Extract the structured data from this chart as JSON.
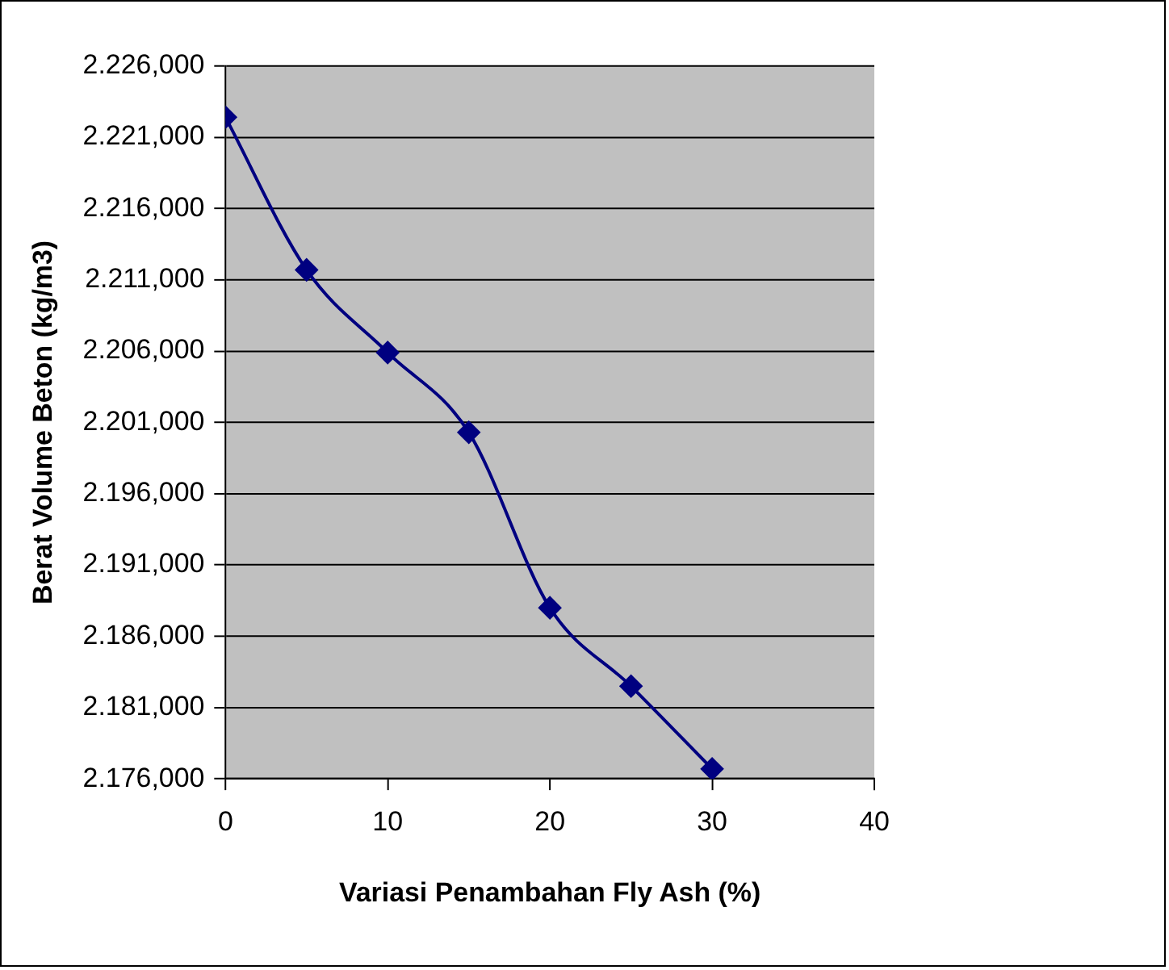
{
  "chart_data": {
    "type": "line",
    "xlabel": "Variasi Penambahan Fly Ash (%)",
    "ylabel": "Berat Volume Beton (kg/m3)",
    "x": [
      0,
      5,
      10,
      15,
      20,
      25,
      30
    ],
    "series": [
      {
        "color": "#000080",
        "values": [
          2222.4,
          2211.7,
          2205.9,
          2200.3,
          2188.0,
          2182.5,
          2176.7
        ]
      }
    ],
    "xlim": [
      0,
      40
    ],
    "xticks": [
      0,
      10,
      20,
      30,
      40
    ],
    "ylim": [
      2176,
      2226
    ],
    "yticks": [
      {
        "value": 2176,
        "label": "2.176,000"
      },
      {
        "value": 2181,
        "label": "2.181,000"
      },
      {
        "value": 2186,
        "label": "2.186,000"
      },
      {
        "value": 2191,
        "label": "2.191,000"
      },
      {
        "value": 2196,
        "label": "2.196,000"
      },
      {
        "value": 2201,
        "label": "2.201,000"
      },
      {
        "value": 2206,
        "label": "2.206,000"
      },
      {
        "value": 2211,
        "label": "2.211,000"
      },
      {
        "value": 2216,
        "label": "2.216,000"
      },
      {
        "value": 2221,
        "label": "2.221,000"
      },
      {
        "value": 2226,
        "label": "2.226,000"
      }
    ],
    "grid": "y",
    "legend": false,
    "marker": "diamond",
    "line_style": "solid"
  }
}
